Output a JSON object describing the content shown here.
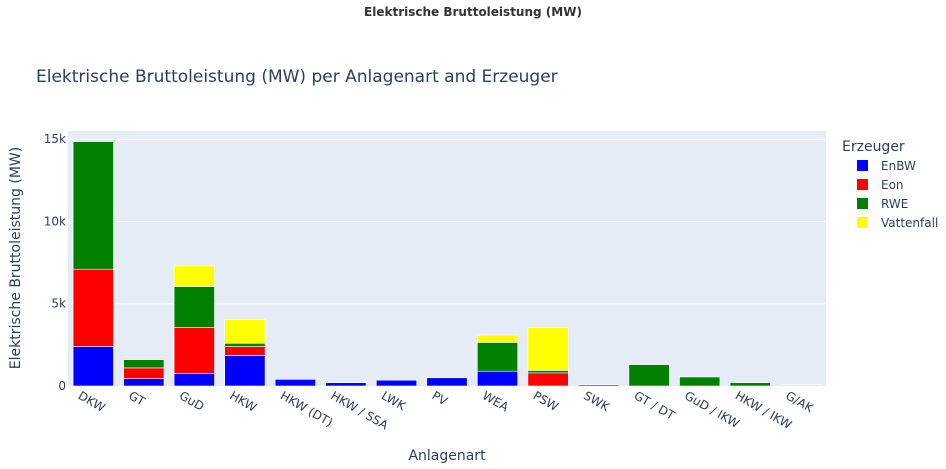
{
  "page": {
    "title": "Elektrische Bruttoleistung (MW)"
  },
  "chart_data": {
    "type": "bar",
    "stacked": true,
    "title": "Elektrische Bruttoleistung (MW) per Anlagenart and Erzeuger",
    "xlabel": "Anlagenart",
    "ylabel": "Elektrische Bruttoleistung (MW)",
    "ylim": [
      0,
      15500
    ],
    "yticks": [
      0,
      5000,
      10000,
      15000
    ],
    "ytick_labels": [
      "0",
      "5k",
      "10k",
      "15k"
    ],
    "grid": true,
    "legend_title": "Erzeuger",
    "legend_position": "right",
    "categories": [
      "DKW",
      "GT",
      "GuD",
      "HKW",
      "HKW (DT)",
      "HKW / SSA",
      "LWK",
      "PV",
      "WEA",
      "PSW",
      "SWK",
      "GT / DT",
      "GuD / IKW",
      "HKW / IKW",
      "G/AK"
    ],
    "series": [
      {
        "name": "EnBW",
        "color": "#0000ff",
        "values": [
          2400,
          450,
          750,
          1850,
          400,
          200,
          350,
          500,
          900,
          0,
          0,
          0,
          0,
          0,
          0
        ]
      },
      {
        "name": "Eon",
        "color": "#ff0000",
        "values": [
          4700,
          650,
          2800,
          550,
          0,
          0,
          0,
          0,
          0,
          800,
          80,
          0,
          0,
          0,
          0
        ]
      },
      {
        "name": "RWE",
        "color": "#008000",
        "values": [
          7750,
          500,
          2500,
          200,
          0,
          0,
          0,
          0,
          1750,
          150,
          0,
          1300,
          550,
          200,
          0
        ]
      },
      {
        "name": "Vattenfall",
        "color": "#ffff00",
        "values": [
          0,
          0,
          1250,
          1450,
          0,
          0,
          0,
          0,
          450,
          2600,
          0,
          0,
          0,
          0,
          80
        ]
      }
    ]
  }
}
